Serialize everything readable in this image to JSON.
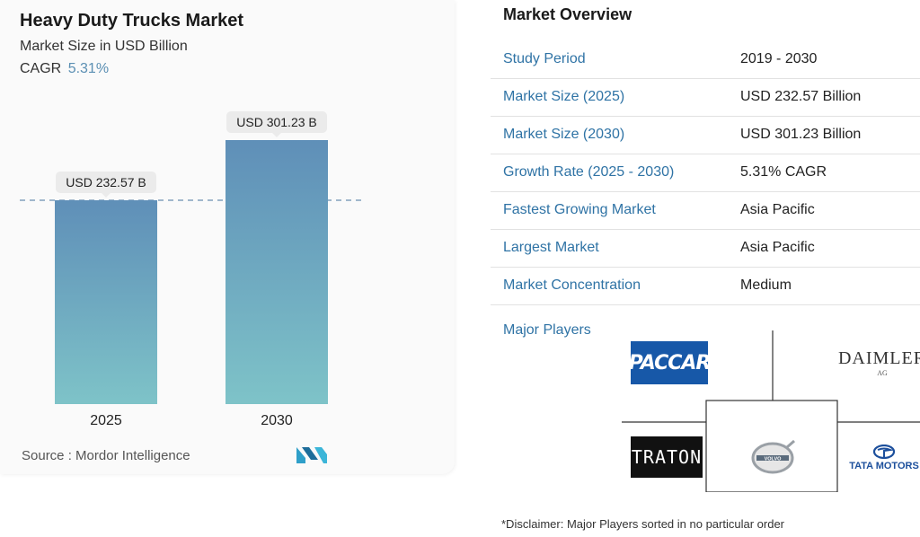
{
  "header": {
    "title": "Heavy Duty Trucks Market",
    "subtitle": "Market Size in USD Billion",
    "cagr_label": "CAGR",
    "cagr_value": "5.31%"
  },
  "chart_data": {
    "type": "bar",
    "categories": [
      "2025",
      "2030"
    ],
    "values": [
      232.57,
      301.23
    ],
    "data_labels": [
      "USD 232.57 B",
      "USD 301.23 B"
    ],
    "title": "Heavy Duty Trucks Market",
    "ylabel": "Market Size in USD Billion",
    "grid": false,
    "reference_line": 232.57
  },
  "source": {
    "label": "Source :",
    "name": "Mordor Intelligence"
  },
  "overview": {
    "title": "Market Overview",
    "rows": [
      {
        "key": "Study Period",
        "value": "2019 - 2030"
      },
      {
        "key": "Market Size (2025)",
        "value": "USD 232.57 Billion"
      },
      {
        "key": "Market Size (2030)",
        "value": "USD 301.23 Billion"
      },
      {
        "key": "Growth Rate (2025 - 2030)",
        "value": "5.31% CAGR"
      },
      {
        "key": "Fastest Growing Market",
        "value": "Asia Pacific"
      },
      {
        "key": "Largest Market",
        "value": "Asia Pacific"
      },
      {
        "key": "Market Concentration",
        "value": "Medium"
      }
    ],
    "players_label": "Major Players",
    "players": [
      {
        "name": "PACCAR",
        "icon": "paccar-logo"
      },
      {
        "name": "DAIMLER",
        "sub": "AG",
        "icon": "daimler-logo"
      },
      {
        "name": "TRATON",
        "icon": "traton-logo"
      },
      {
        "name": "VOLVO",
        "icon": "volvo-logo"
      },
      {
        "name": "TATA MOTORS",
        "icon": "tata-motors-logo"
      }
    ],
    "disclaimer": "*Disclaimer: Major Players sorted in no particular order"
  },
  "colors": {
    "bar_top": "#5f8fb8",
    "bar_bottom": "#7ec3c8",
    "accent_text": "#2f73a5",
    "cagr": "#5b8fb3"
  }
}
